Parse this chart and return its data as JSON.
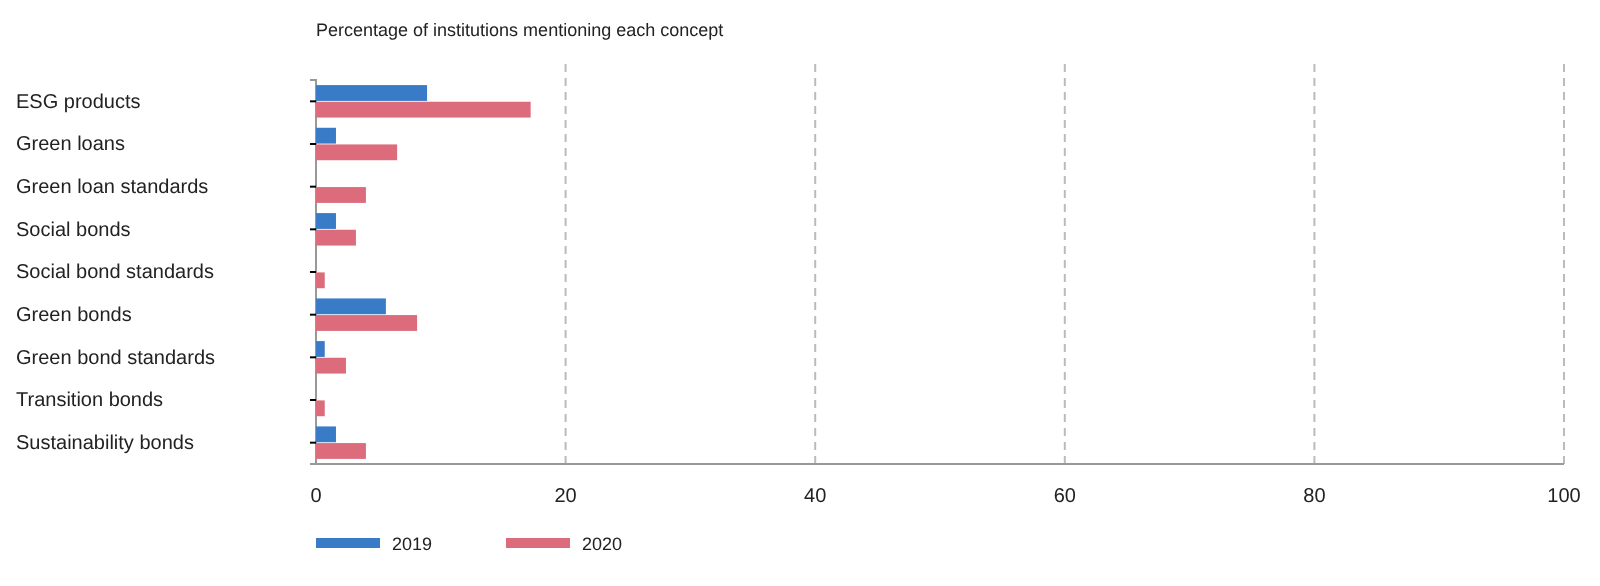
{
  "chart_data": {
    "type": "bar",
    "orientation": "horizontal",
    "title": "Percentage of institutions mentioning each concept",
    "categories": [
      "ESG products",
      "Green loans",
      "Green loan standards",
      "Social bonds",
      "Social bond standards",
      "Green bonds",
      "Green bond standards",
      "Transition bonds",
      "Sustainability bonds"
    ],
    "series": [
      {
        "name": "2019",
        "color": "#3a7bc8",
        "values": [
          8.9,
          1.6,
          0,
          1.6,
          0,
          5.6,
          0.7,
          0,
          1.6
        ]
      },
      {
        "name": "2020",
        "color": "#dc6b7b",
        "values": [
          17.2,
          6.5,
          4.0,
          3.2,
          0.7,
          8.1,
          2.4,
          0.7,
          4.0
        ]
      }
    ],
    "xlim": [
      0,
      100
    ],
    "xticks": [
      0,
      20,
      40,
      60,
      80,
      100
    ],
    "grid": "x",
    "legend": "bottom left"
  }
}
